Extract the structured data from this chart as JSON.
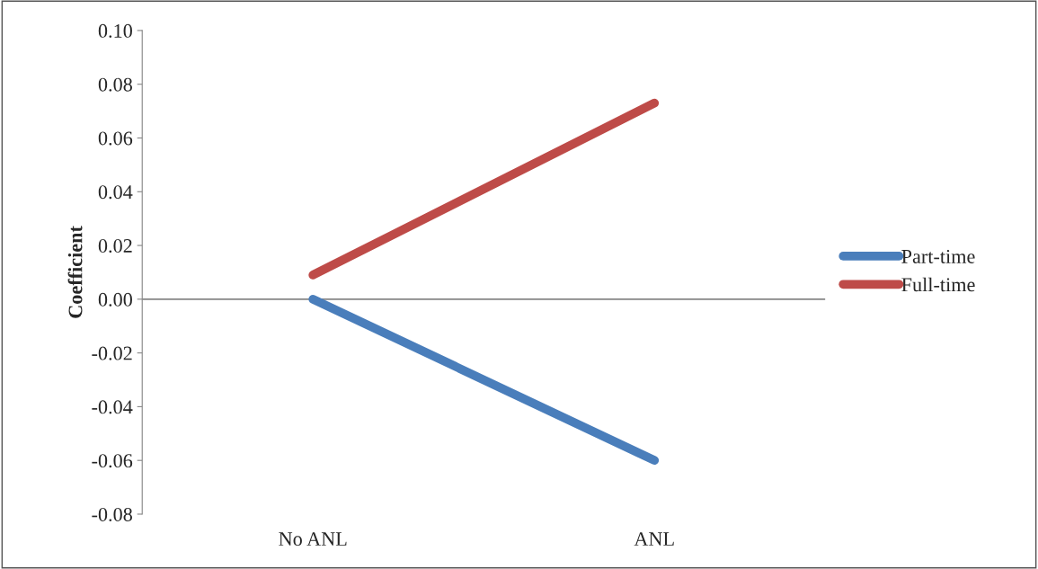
{
  "chart_data": {
    "type": "line",
    "ylabel": "Coefficient",
    "categories": [
      "No ANL",
      "ANL"
    ],
    "series": [
      {
        "name": "Part-time",
        "color": "#4a7ebb",
        "values": [
          0.0,
          -0.06
        ]
      },
      {
        "name": "Full-time",
        "color": "#be4b48",
        "values": [
          0.009,
          0.073
        ]
      }
    ],
    "ylim": [
      -0.08,
      0.1
    ],
    "yticks": [
      {
        "value": -0.08,
        "label": "-0.08"
      },
      {
        "value": -0.06,
        "label": "-0.06"
      },
      {
        "value": -0.04,
        "label": "-0.04"
      },
      {
        "value": -0.02,
        "label": "-0.02"
      },
      {
        "value": 0,
        "label": "0.00"
      },
      {
        "value": 0.02,
        "label": "0.02"
      },
      {
        "value": 0.04,
        "label": "0.04"
      },
      {
        "value": 0.06,
        "label": "0.06"
      },
      {
        "value": 0.08,
        "label": "0.08"
      },
      {
        "value": 0.1,
        "label": "0.10"
      }
    ],
    "ref_lines": [
      {
        "axis": "y",
        "value": 0,
        "color": "#868686"
      }
    ],
    "grid": false,
    "legend": "right",
    "marker": "none",
    "line_style": "solid"
  }
}
